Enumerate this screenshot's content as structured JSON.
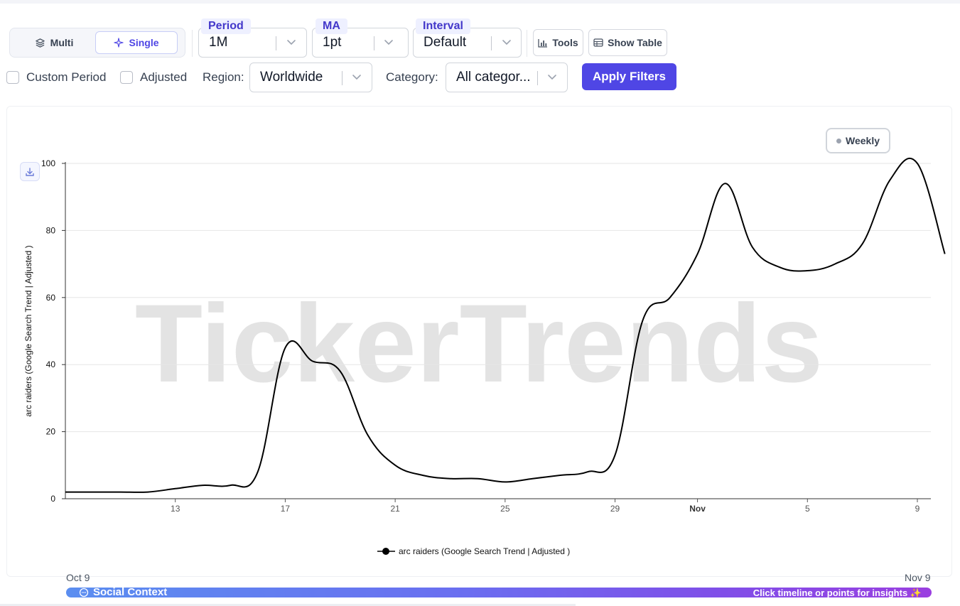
{
  "view_toggle": {
    "multi_label": "Multi",
    "single_label": "Single",
    "selected": "Single"
  },
  "filters": {
    "period": {
      "label": "Period",
      "value": "1M"
    },
    "ma": {
      "label": "MA",
      "value": "1pt"
    },
    "interval": {
      "label": "Interval",
      "value": "Default"
    },
    "tools_label": "Tools",
    "show_table_label": "Show Table",
    "custom_period_label": "Custom Period",
    "custom_period_checked": false,
    "adjusted_label": "Adjusted",
    "adjusted_checked": false,
    "region": {
      "label": "Region:",
      "value": "Worldwide"
    },
    "category": {
      "label": "Category:",
      "value": "All categor..."
    },
    "apply_label": "Apply Filters"
  },
  "legend_toggle": {
    "label": "Weekly"
  },
  "watermark": "TickerTrends",
  "range": {
    "start": "Oct 9",
    "end": "Nov 9"
  },
  "timeline": {
    "title": "Social Context",
    "hint": "Click timeline or points for insights"
  },
  "colors": {
    "accent": "#4f46e5",
    "series": "#000000",
    "watermark": "#e3e3e3",
    "grid": "#e6e6e6"
  },
  "chart_data": {
    "type": "line",
    "ylabel": "arc raiders  (Google Search Trend | Adjusted )",
    "xlabel": "",
    "ylim": [
      0,
      100
    ],
    "yticks": [
      0,
      20,
      40,
      60,
      80,
      100
    ],
    "xlim": [
      "2025-10-09",
      "2025-11-09"
    ],
    "xticks": [
      {
        "date": "2025-10-13",
        "label": "13"
      },
      {
        "date": "2025-10-17",
        "label": "17"
      },
      {
        "date": "2025-10-21",
        "label": "21"
      },
      {
        "date": "2025-10-25",
        "label": "25"
      },
      {
        "date": "2025-10-29",
        "label": "29"
      },
      {
        "date": "2025-11-01",
        "label": "Nov",
        "bold": true
      },
      {
        "date": "2025-11-05",
        "label": "5"
      },
      {
        "date": "2025-11-09",
        "label": "9"
      }
    ],
    "grid": true,
    "legend_position": "bottom-center",
    "series": [
      {
        "name": "arc raiders  (Google Search Trend | Adjusted )",
        "color": "#000000",
        "x": [
          "2025-10-09",
          "2025-10-10",
          "2025-10-11",
          "2025-10-12",
          "2025-10-13",
          "2025-10-14",
          "2025-10-15",
          "2025-10-16",
          "2025-10-17",
          "2025-10-18",
          "2025-10-19",
          "2025-10-20",
          "2025-10-21",
          "2025-10-22",
          "2025-10-23",
          "2025-10-24",
          "2025-10-25",
          "2025-10-26",
          "2025-10-27",
          "2025-10-28",
          "2025-10-29",
          "2025-10-30",
          "2025-10-31",
          "2025-11-01",
          "2025-11-02",
          "2025-11-03",
          "2025-11-04",
          "2025-11-05",
          "2025-11-06",
          "2025-11-07",
          "2025-11-08",
          "2025-11-09",
          "2025-11-10"
        ],
        "values": [
          2,
          2,
          2,
          2,
          3,
          4,
          4,
          8,
          45,
          41,
          38,
          19,
          10,
          7,
          6,
          6,
          5,
          6,
          7,
          8,
          13,
          53,
          60,
          73,
          94,
          75,
          69,
          68,
          70,
          76,
          95,
          100,
          73
        ]
      }
    ]
  }
}
